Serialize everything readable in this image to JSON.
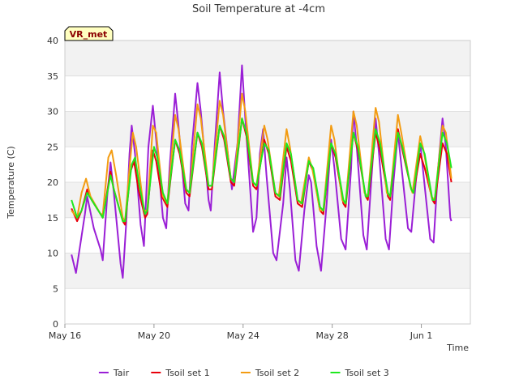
{
  "chart_data": {
    "type": "line",
    "title": "Soil Temperature at -4cm",
    "xlabel": "Time",
    "ylabel": "Temperature (C)",
    "station_badge": "VR_met",
    "ylim": [
      0,
      40
    ],
    "yticks": [
      0,
      5,
      10,
      15,
      20,
      25,
      30,
      35,
      40
    ],
    "x_start": "May 16",
    "x_end": "Jun 3",
    "xlim_days": [
      0,
      18.2
    ],
    "xticks": [
      {
        "day": 0,
        "label": "May 16"
      },
      {
        "day": 4,
        "label": "May 20"
      },
      {
        "day": 8,
        "label": "May 24"
      },
      {
        "day": 12,
        "label": "May 28"
      },
      {
        "day": 16,
        "label": "Jun 1"
      }
    ],
    "grid": true,
    "legend_position": "bottom",
    "series": [
      {
        "name": "Tair",
        "color": "#9a1fd6",
        "points": [
          [
            0.3,
            9.8
          ],
          [
            0.5,
            7.2
          ],
          [
            0.9,
            15.5
          ],
          [
            1.0,
            18.0
          ],
          [
            1.3,
            13.5
          ],
          [
            1.6,
            10.5
          ],
          [
            1.7,
            9.0
          ],
          [
            1.9,
            18.0
          ],
          [
            2.05,
            22.8
          ],
          [
            2.2,
            18.5
          ],
          [
            2.5,
            8.5
          ],
          [
            2.6,
            6.5
          ],
          [
            2.75,
            14.0
          ],
          [
            2.9,
            24.0
          ],
          [
            3.0,
            28.0
          ],
          [
            3.15,
            24.0
          ],
          [
            3.4,
            14.0
          ],
          [
            3.55,
            11.0
          ],
          [
            3.75,
            25.0
          ],
          [
            3.95,
            30.8
          ],
          [
            4.1,
            26.0
          ],
          [
            4.4,
            15.0
          ],
          [
            4.55,
            13.5
          ],
          [
            4.7,
            22.0
          ],
          [
            4.95,
            32.5
          ],
          [
            5.1,
            28.0
          ],
          [
            5.4,
            17.0
          ],
          [
            5.55,
            16.0
          ],
          [
            5.7,
            25.0
          ],
          [
            5.95,
            34.0
          ],
          [
            6.1,
            30.0
          ],
          [
            6.45,
            17.5
          ],
          [
            6.55,
            16.0
          ],
          [
            6.7,
            24.0
          ],
          [
            6.95,
            35.5
          ],
          [
            7.1,
            30.0
          ],
          [
            7.5,
            19.0
          ],
          [
            7.75,
            25.5
          ],
          [
            7.95,
            36.5
          ],
          [
            8.1,
            29.0
          ],
          [
            8.45,
            13.0
          ],
          [
            8.6,
            15.0
          ],
          [
            8.75,
            24.0
          ],
          [
            8.9,
            27.5
          ],
          [
            9.05,
            21.0
          ],
          [
            9.35,
            10.0
          ],
          [
            9.5,
            9.0
          ],
          [
            9.8,
            17.0
          ],
          [
            9.95,
            23.5
          ],
          [
            10.1,
            19.0
          ],
          [
            10.35,
            9.0
          ],
          [
            10.5,
            7.5
          ],
          [
            10.75,
            16.0
          ],
          [
            10.95,
            21.0
          ],
          [
            11.05,
            20.0
          ],
          [
            11.3,
            11.0
          ],
          [
            11.5,
            7.5
          ],
          [
            11.75,
            17.0
          ],
          [
            11.95,
            26.0
          ],
          [
            12.1,
            22.0
          ],
          [
            12.4,
            12.0
          ],
          [
            12.6,
            10.5
          ],
          [
            12.85,
            22.0
          ],
          [
            12.95,
            30.0
          ],
          [
            13.1,
            25.0
          ],
          [
            13.4,
            12.5
          ],
          [
            13.55,
            10.5
          ],
          [
            13.75,
            20.0
          ],
          [
            13.95,
            29.0
          ],
          [
            14.1,
            24.0
          ],
          [
            14.4,
            12.0
          ],
          [
            14.55,
            10.5
          ],
          [
            14.75,
            20.0
          ],
          [
            14.95,
            27.0
          ],
          [
            15.1,
            22.5
          ],
          [
            15.4,
            13.5
          ],
          [
            15.55,
            13.0
          ],
          [
            15.75,
            20.0
          ],
          [
            15.95,
            25.5
          ],
          [
            16.1,
            21.0
          ],
          [
            16.4,
            12.0
          ],
          [
            16.55,
            11.5
          ],
          [
            16.75,
            22.0
          ],
          [
            16.95,
            29.0
          ],
          [
            17.1,
            25.0
          ],
          [
            17.3,
            15.0
          ],
          [
            17.35,
            14.5
          ]
        ]
      },
      {
        "name": "Tsoil set 1",
        "color": "#e8000b",
        "points": [
          [
            0.3,
            16.3
          ],
          [
            0.55,
            14.5
          ],
          [
            0.75,
            16.0
          ],
          [
            1.0,
            19.0
          ],
          [
            1.2,
            17.5
          ],
          [
            1.6,
            15.5
          ],
          [
            1.7,
            15.0
          ],
          [
            2.05,
            21.5
          ],
          [
            2.2,
            19.0
          ],
          [
            2.6,
            14.5
          ],
          [
            2.7,
            14.0
          ],
          [
            2.95,
            21.5
          ],
          [
            3.1,
            23.0
          ],
          [
            3.3,
            19.0
          ],
          [
            3.6,
            15.0
          ],
          [
            3.7,
            15.5
          ],
          [
            3.95,
            24.5
          ],
          [
            4.1,
            23.0
          ],
          [
            4.35,
            18.0
          ],
          [
            4.6,
            16.5
          ],
          [
            4.95,
            26.0
          ],
          [
            5.15,
            24.0
          ],
          [
            5.45,
            18.5
          ],
          [
            5.6,
            18.0
          ],
          [
            5.95,
            27.0
          ],
          [
            6.15,
            25.0
          ],
          [
            6.45,
            19.0
          ],
          [
            6.6,
            19.0
          ],
          [
            6.95,
            28.0
          ],
          [
            7.15,
            26.0
          ],
          [
            7.45,
            20.0
          ],
          [
            7.6,
            19.5
          ],
          [
            7.95,
            29.0
          ],
          [
            8.15,
            26.5
          ],
          [
            8.45,
            19.5
          ],
          [
            8.6,
            19.0
          ],
          [
            8.95,
            26.0
          ],
          [
            9.15,
            24.0
          ],
          [
            9.45,
            18.0
          ],
          [
            9.65,
            17.5
          ],
          [
            9.95,
            25.0
          ],
          [
            10.15,
            23.0
          ],
          [
            10.45,
            17.0
          ],
          [
            10.65,
            16.5
          ],
          [
            10.95,
            23.0
          ],
          [
            11.15,
            21.5
          ],
          [
            11.45,
            16.0
          ],
          [
            11.6,
            15.5
          ],
          [
            11.95,
            25.5
          ],
          [
            12.15,
            23.5
          ],
          [
            12.5,
            17.0
          ],
          [
            12.6,
            16.5
          ],
          [
            12.95,
            27.0
          ],
          [
            13.15,
            24.5
          ],
          [
            13.5,
            18.0
          ],
          [
            13.6,
            17.5
          ],
          [
            13.95,
            27.0
          ],
          [
            14.15,
            24.5
          ],
          [
            14.5,
            18.0
          ],
          [
            14.6,
            17.5
          ],
          [
            14.95,
            27.5
          ],
          [
            15.15,
            24.5
          ],
          [
            15.55,
            19.0
          ],
          [
            15.65,
            18.5
          ],
          [
            15.95,
            24.0
          ],
          [
            16.15,
            22.0
          ],
          [
            16.5,
            17.5
          ],
          [
            16.6,
            17.0
          ],
          [
            16.95,
            25.5
          ],
          [
            17.15,
            24.0
          ],
          [
            17.35,
            20.0
          ]
        ]
      },
      {
        "name": "Tsoil set 2",
        "color": "#f39c12",
        "points": [
          [
            0.3,
            16.0
          ],
          [
            0.55,
            15.0
          ],
          [
            0.75,
            18.5
          ],
          [
            0.95,
            20.5
          ],
          [
            1.15,
            18.0
          ],
          [
            1.6,
            15.5
          ],
          [
            1.7,
            15.5
          ],
          [
            1.95,
            23.5
          ],
          [
            2.1,
            24.5
          ],
          [
            2.3,
            21.0
          ],
          [
            2.6,
            15.0
          ],
          [
            2.7,
            14.5
          ],
          [
            2.9,
            22.0
          ],
          [
            3.05,
            27.0
          ],
          [
            3.2,
            25.0
          ],
          [
            3.55,
            16.0
          ],
          [
            3.7,
            16.0
          ],
          [
            3.95,
            28.0
          ],
          [
            4.1,
            27.0
          ],
          [
            4.4,
            18.0
          ],
          [
            4.6,
            17.0
          ],
          [
            4.95,
            29.5
          ],
          [
            5.1,
            27.5
          ],
          [
            5.45,
            19.0
          ],
          [
            5.6,
            18.5
          ],
          [
            5.95,
            31.0
          ],
          [
            6.1,
            29.0
          ],
          [
            6.45,
            19.5
          ],
          [
            6.6,
            19.5
          ],
          [
            6.95,
            31.5
          ],
          [
            7.1,
            29.5
          ],
          [
            7.45,
            20.5
          ],
          [
            7.6,
            20.0
          ],
          [
            7.95,
            32.5
          ],
          [
            8.1,
            30.0
          ],
          [
            8.45,
            20.0
          ],
          [
            8.6,
            19.5
          ],
          [
            8.95,
            28.0
          ],
          [
            9.1,
            26.0
          ],
          [
            9.45,
            18.5
          ],
          [
            9.6,
            18.0
          ],
          [
            9.95,
            27.5
          ],
          [
            10.1,
            25.0
          ],
          [
            10.45,
            17.5
          ],
          [
            10.6,
            17.0
          ],
          [
            10.95,
            23.5
          ],
          [
            11.1,
            22.0
          ],
          [
            11.45,
            16.0
          ],
          [
            11.6,
            16.0
          ],
          [
            11.95,
            28.0
          ],
          [
            12.1,
            26.0
          ],
          [
            12.45,
            17.5
          ],
          [
            12.6,
            17.0
          ],
          [
            12.95,
            30.0
          ],
          [
            13.1,
            28.0
          ],
          [
            13.45,
            18.5
          ],
          [
            13.6,
            18.0
          ],
          [
            13.95,
            30.5
          ],
          [
            14.1,
            28.5
          ],
          [
            14.45,
            18.5
          ],
          [
            14.6,
            18.0
          ],
          [
            14.95,
            29.5
          ],
          [
            15.1,
            27.0
          ],
          [
            15.5,
            19.5
          ],
          [
            15.6,
            18.5
          ],
          [
            15.95,
            26.5
          ],
          [
            16.1,
            24.5
          ],
          [
            16.45,
            18.0
          ],
          [
            16.6,
            17.5
          ],
          [
            16.95,
            28.0
          ],
          [
            17.1,
            27.0
          ],
          [
            17.35,
            20.5
          ]
        ]
      },
      {
        "name": "Tsoil set 3",
        "color": "#1ee81e",
        "points": [
          [
            0.3,
            17.5
          ],
          [
            0.55,
            15.0
          ],
          [
            0.75,
            16.0
          ],
          [
            1.0,
            18.5
          ],
          [
            1.2,
            17.5
          ],
          [
            1.6,
            15.5
          ],
          [
            1.7,
            15.0
          ],
          [
            2.05,
            21.0
          ],
          [
            2.2,
            19.0
          ],
          [
            2.6,
            14.5
          ],
          [
            2.7,
            14.5
          ],
          [
            3.0,
            22.5
          ],
          [
            3.15,
            23.5
          ],
          [
            3.35,
            19.5
          ],
          [
            3.6,
            15.5
          ],
          [
            3.7,
            16.0
          ],
          [
            4.0,
            25.0
          ],
          [
            4.15,
            23.5
          ],
          [
            4.4,
            18.5
          ],
          [
            4.6,
            17.0
          ],
          [
            4.95,
            26.0
          ],
          [
            5.15,
            24.5
          ],
          [
            5.45,
            19.0
          ],
          [
            5.6,
            18.5
          ],
          [
            5.95,
            27.0
          ],
          [
            6.15,
            25.5
          ],
          [
            6.45,
            19.5
          ],
          [
            6.6,
            19.5
          ],
          [
            6.95,
            28.0
          ],
          [
            7.15,
            26.5
          ],
          [
            7.45,
            20.5
          ],
          [
            7.6,
            20.0
          ],
          [
            7.95,
            29.0
          ],
          [
            8.15,
            27.0
          ],
          [
            8.45,
            20.0
          ],
          [
            8.6,
            19.5
          ],
          [
            8.95,
            25.5
          ],
          [
            9.15,
            24.5
          ],
          [
            9.45,
            18.5
          ],
          [
            9.65,
            18.0
          ],
          [
            9.95,
            25.5
          ],
          [
            10.15,
            24.0
          ],
          [
            10.45,
            17.5
          ],
          [
            10.65,
            17.0
          ],
          [
            10.95,
            23.0
          ],
          [
            11.15,
            22.0
          ],
          [
            11.45,
            16.5
          ],
          [
            11.6,
            16.0
          ],
          [
            11.95,
            25.5
          ],
          [
            12.15,
            24.0
          ],
          [
            12.5,
            17.5
          ],
          [
            12.6,
            17.0
          ],
          [
            12.95,
            27.0
          ],
          [
            13.15,
            25.0
          ],
          [
            13.5,
            18.0
          ],
          [
            13.6,
            18.0
          ],
          [
            13.95,
            27.5
          ],
          [
            14.15,
            25.5
          ],
          [
            14.5,
            18.5
          ],
          [
            14.6,
            18.0
          ],
          [
            14.95,
            27.0
          ],
          [
            15.15,
            25.0
          ],
          [
            15.55,
            19.0
          ],
          [
            15.65,
            18.5
          ],
          [
            15.95,
            25.5
          ],
          [
            16.15,
            24.0
          ],
          [
            16.5,
            17.5
          ],
          [
            16.6,
            17.5
          ],
          [
            16.95,
            27.0
          ],
          [
            17.15,
            25.5
          ],
          [
            17.35,
            22.0
          ]
        ]
      }
    ]
  }
}
